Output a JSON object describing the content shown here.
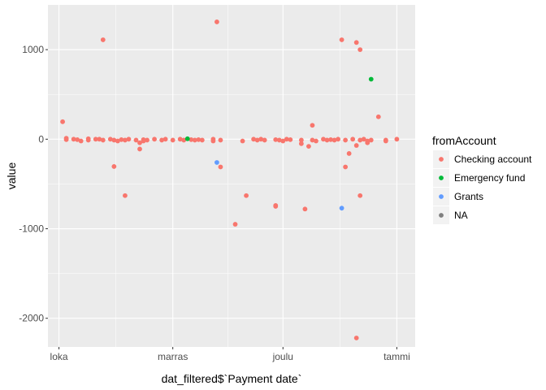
{
  "chart_data": {
    "type": "scatter",
    "xlabel": "dat_filtered$`Payment date`",
    "ylabel": "value",
    "x_ticks": [
      {
        "label": "loka",
        "value": "2015-10-01"
      },
      {
        "label": "marras",
        "value": "2015-11-01"
      },
      {
        "label": "joulu",
        "value": "2015-12-01"
      },
      {
        "label": "tammi",
        "value": "2016-01-01"
      }
    ],
    "xlim": [
      "2015-09-28",
      "2016-01-06"
    ],
    "y_ticks": [
      1000,
      0,
      -1000,
      -2000
    ],
    "ylim": [
      -2320,
      1500
    ],
    "grid": true,
    "legend_position": "right",
    "legend_title": "fromAccount",
    "series": [
      {
        "name": "Checking account",
        "color": "#F8766D",
        "points": [
          [
            "2015-10-02",
            195
          ],
          [
            "2015-10-03",
            -5
          ],
          [
            "2015-10-03",
            10
          ],
          [
            "2015-10-05",
            0
          ],
          [
            "2015-10-06",
            -5
          ],
          [
            "2015-10-07",
            -20
          ],
          [
            "2015-10-09",
            -10
          ],
          [
            "2015-10-09",
            5
          ],
          [
            "2015-10-11",
            0
          ],
          [
            "2015-10-12",
            0
          ],
          [
            "2015-10-13",
            1110
          ],
          [
            "2015-10-13",
            -10
          ],
          [
            "2015-10-15",
            0
          ],
          [
            "2015-10-16",
            -305
          ],
          [
            "2015-10-16",
            -10
          ],
          [
            "2015-10-17",
            -20
          ],
          [
            "2015-10-18",
            -5
          ],
          [
            "2015-10-19",
            -630
          ],
          [
            "2015-10-19",
            -10
          ],
          [
            "2015-10-20",
            0
          ],
          [
            "2015-10-22",
            -10
          ],
          [
            "2015-10-23",
            -40
          ],
          [
            "2015-10-23",
            -110
          ],
          [
            "2015-10-24",
            -5
          ],
          [
            "2015-10-24",
            -20
          ],
          [
            "2015-10-25",
            -10
          ],
          [
            "2015-10-27",
            0
          ],
          [
            "2015-10-29",
            -10
          ],
          [
            "2015-10-30",
            0
          ],
          [
            "2015-11-01",
            -10
          ],
          [
            "2015-11-03",
            0
          ],
          [
            "2015-11-04",
            -10
          ],
          [
            "2015-11-06",
            -5
          ],
          [
            "2015-11-07",
            -10
          ],
          [
            "2015-11-08",
            -5
          ],
          [
            "2015-11-09",
            -10
          ],
          [
            "2015-11-12",
            0
          ],
          [
            "2015-11-12",
            -20
          ],
          [
            "2015-11-13",
            1310
          ],
          [
            "2015-11-14",
            -310
          ],
          [
            "2015-11-14",
            -10
          ],
          [
            "2015-11-18",
            -950
          ],
          [
            "2015-11-20",
            -20
          ],
          [
            "2015-11-21",
            -630
          ],
          [
            "2015-11-23",
            0
          ],
          [
            "2015-11-24",
            -10
          ],
          [
            "2015-11-25",
            0
          ],
          [
            "2015-11-26",
            -10
          ],
          [
            "2015-11-29",
            -5
          ],
          [
            "2015-11-29",
            -750
          ],
          [
            "2015-11-29",
            -740
          ],
          [
            "2015-11-30",
            -10
          ],
          [
            "2015-12-01",
            -20
          ],
          [
            "2015-12-02",
            0
          ],
          [
            "2015-12-03",
            -5
          ],
          [
            "2015-12-06",
            -10
          ],
          [
            "2015-12-06",
            -50
          ],
          [
            "2015-12-07",
            -780
          ],
          [
            "2015-12-08",
            -80
          ],
          [
            "2015-12-09",
            155
          ],
          [
            "2015-12-09",
            -10
          ],
          [
            "2015-12-10",
            -20
          ],
          [
            "2015-12-12",
            0
          ],
          [
            "2015-12-13",
            -10
          ],
          [
            "2015-12-14",
            -5
          ],
          [
            "2015-12-15",
            -10
          ],
          [
            "2015-12-16",
            0
          ],
          [
            "2015-12-17",
            1110
          ],
          [
            "2015-12-18",
            -310
          ],
          [
            "2015-12-18",
            -10
          ],
          [
            "2015-12-19",
            -160
          ],
          [
            "2015-12-20",
            0
          ],
          [
            "2015-12-21",
            1080
          ],
          [
            "2015-12-21",
            -2220
          ],
          [
            "2015-12-21",
            -70
          ],
          [
            "2015-12-22",
            1000
          ],
          [
            "2015-12-22",
            -630
          ],
          [
            "2015-12-22",
            -10
          ],
          [
            "2015-12-23",
            0
          ],
          [
            "2015-12-24",
            -40
          ],
          [
            "2015-12-24",
            -20
          ],
          [
            "2015-12-25",
            -10
          ],
          [
            "2015-12-27",
            250
          ],
          [
            "2015-12-29",
            -10
          ],
          [
            "2015-12-29",
            -20
          ],
          [
            "2016-01-01",
            0
          ]
        ]
      },
      {
        "name": "Emergency fund",
        "color": "#00BA38",
        "points": [
          [
            "2015-11-05",
            5
          ],
          [
            "2015-12-25",
            670
          ]
        ]
      },
      {
        "name": "Grants",
        "color": "#619CFF",
        "points": [
          [
            "2015-11-13",
            -260
          ],
          [
            "2015-12-17",
            -770
          ]
        ]
      },
      {
        "name": "NA",
        "color": "#7F7F7F",
        "points": []
      }
    ]
  }
}
